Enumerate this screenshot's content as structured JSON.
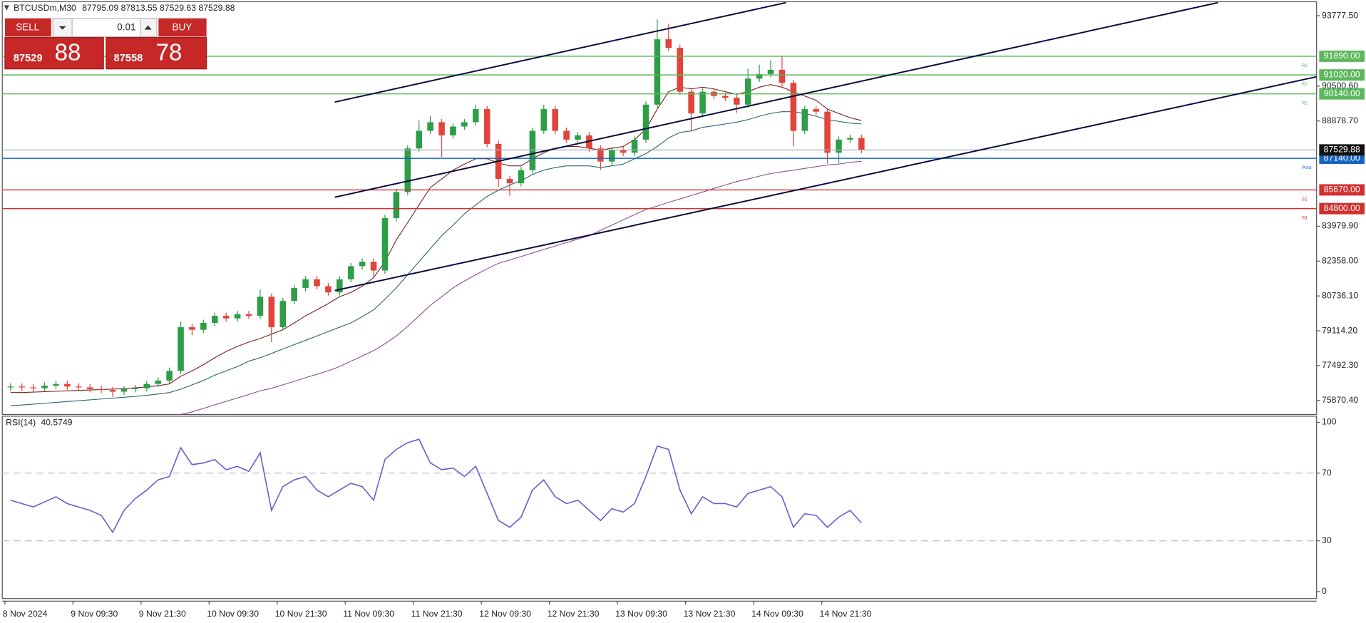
{
  "header": {
    "symbol": "BTCUSDm,M30",
    "quote": "87795.09 87813.55 87529.63 87529.88"
  },
  "trade_panel": {
    "sell": "SELL",
    "buy": "BUY",
    "volume": "0.01",
    "sell_price_main": "87529",
    "sell_price_big": "88",
    "buy_price_main": "87558",
    "buy_price_big": "78"
  },
  "chart_data": [
    {
      "type": "candlestick",
      "categories": [
        "8 Nov 2024",
        null,
        null,
        null,
        null,
        null,
        "9 Nov 09:30",
        null,
        null,
        null,
        null,
        null,
        "9 Nov 21:30",
        null,
        null,
        null,
        null,
        null,
        "10 Nov 09:30",
        null,
        null,
        null,
        null,
        null,
        "10 Nov 21:30",
        null,
        null,
        null,
        null,
        null,
        "11 Nov 09:30",
        null,
        null,
        null,
        null,
        null,
        "11 Nov 21:30",
        null,
        null,
        null,
        null,
        null,
        "12 Nov 09:30",
        null,
        null,
        null,
        null,
        null,
        "12 Nov 21:30",
        null,
        null,
        null,
        null,
        null,
        "13 Nov 09:30",
        null,
        null,
        null,
        null,
        null,
        "13 Nov 21:30",
        null,
        null,
        null,
        null,
        null,
        "14 Nov 09:30",
        null,
        null,
        null,
        null,
        null,
        "14 Nov 21:30",
        null,
        null,
        null
      ],
      "open": [
        76480,
        76520,
        76480,
        76440,
        76560,
        76640,
        76520,
        76480,
        76400,
        76360,
        76280,
        76400,
        76440,
        76640,
        76800,
        77250,
        79280,
        79160,
        79480,
        79810,
        79690,
        79890,
        79810,
        80700,
        79280,
        80500,
        81110,
        81510,
        81190,
        80900,
        81510,
        82120,
        82330,
        81920,
        84360,
        85570,
        87600,
        88420,
        88820,
        88210,
        88620,
        88820,
        89430,
        87810,
        86180,
        85980,
        86590,
        88420,
        89430,
        88420,
        88010,
        88210,
        87600,
        86990,
        87520,
        87400,
        88010,
        89640,
        92680,
        92280,
        90240,
        89230,
        90240,
        90040,
        89960,
        89640,
        90850,
        91060,
        91260,
        90650,
        88420,
        89430,
        89310,
        87400,
        88010,
        88090
      ],
      "high": [
        76670,
        76670,
        76630,
        76710,
        76790,
        76790,
        76670,
        76630,
        76550,
        76510,
        76550,
        76590,
        76790,
        76950,
        77400,
        79560,
        79430,
        79630,
        79960,
        79960,
        80040,
        80040,
        81030,
        80850,
        80650,
        81260,
        81660,
        81660,
        81340,
        81660,
        82270,
        82480,
        82480,
        84510,
        85720,
        87750,
        88900,
        89100,
        88970,
        88770,
        88970,
        89630,
        89580,
        87960,
        86330,
        86740,
        88570,
        89630,
        89580,
        88570,
        88360,
        88360,
        87750,
        87670,
        87670,
        88160,
        89790,
        93600,
        93400,
        92430,
        90390,
        90390,
        90390,
        90190,
        90110,
        91300,
        91500,
        91700,
        91900,
        90800,
        89580,
        89580,
        89460,
        88160,
        88240,
        88240
      ],
      "low": [
        76330,
        76330,
        76290,
        76290,
        76410,
        76370,
        76330,
        76250,
        76210,
        76030,
        76130,
        76250,
        76290,
        76490,
        76650,
        77100,
        78900,
        79010,
        79330,
        79540,
        79540,
        79660,
        79660,
        78590,
        79130,
        80350,
        80960,
        81040,
        80750,
        80750,
        81360,
        81970,
        81650,
        81770,
        84210,
        85420,
        87450,
        88270,
        87200,
        88060,
        88470,
        88670,
        87660,
        85800,
        85400,
        85830,
        86440,
        88270,
        88270,
        87860,
        87860,
        87450,
        86600,
        86840,
        87250,
        87250,
        87860,
        89490,
        92130,
        90090,
        88400,
        89080,
        89890,
        89810,
        89250,
        89490,
        90700,
        90910,
        90500,
        87700,
        88270,
        89160,
        86900,
        86900,
        87860,
        87380
      ],
      "close": [
        76520,
        76480,
        76440,
        76560,
        76640,
        76520,
        76480,
        76400,
        76360,
        76280,
        76400,
        76440,
        76640,
        76800,
        77250,
        79280,
        79160,
        79480,
        79810,
        79690,
        79890,
        79810,
        80700,
        79280,
        80500,
        81110,
        81510,
        81190,
        80900,
        81510,
        82120,
        82330,
        81920,
        84360,
        85570,
        87600,
        88420,
        88820,
        88210,
        88620,
        88820,
        89430,
        87810,
        86180,
        85980,
        86590,
        88420,
        89430,
        88420,
        88010,
        88210,
        87600,
        86990,
        87520,
        87400,
        88010,
        89640,
        92680,
        92280,
        90240,
        89230,
        90240,
        90040,
        89960,
        89640,
        90850,
        91060,
        91260,
        90650,
        88420,
        89430,
        89310,
        87400,
        88010,
        88090,
        87529.88
      ],
      "up_color": "#2e9d48",
      "down_color": "#e0443a",
      "series": [
        {
          "color": "#7a1f1f",
          "values": [
            76240,
            76240,
            76260,
            76280,
            76300,
            76320,
            76340,
            76360,
            76380,
            76400,
            76420,
            76460,
            76500,
            76560,
            76640,
            77000,
            77250,
            77540,
            77860,
            78150,
            78390,
            78590,
            78750,
            78960,
            79160,
            79480,
            79810,
            80090,
            80380,
            80700,
            80900,
            81190,
            81590,
            82330,
            83340,
            84150,
            84970,
            85780,
            86180,
            86590,
            86870,
            87120,
            87120,
            86920,
            86790,
            86790,
            87120,
            87400,
            87610,
            87690,
            87690,
            87610,
            87520,
            87610,
            87690,
            88010,
            88500,
            89430,
            90240,
            90450,
            90370,
            90450,
            90370,
            90240,
            90120,
            90240,
            90450,
            90570,
            90450,
            90240,
            90040,
            89840,
            89430,
            89230,
            89030,
            88900
          ]
        },
        {
          "color": "#2a6470",
          "values": [
            75630,
            75660,
            75700,
            75740,
            75780,
            75820,
            75860,
            75900,
            75940,
            75980,
            76020,
            76060,
            76110,
            76170,
            76240,
            76400,
            76600,
            76800,
            77050,
            77250,
            77450,
            77700,
            77860,
            78060,
            78270,
            78470,
            78670,
            78870,
            79080,
            79280,
            79480,
            79770,
            80090,
            80580,
            81110,
            81720,
            82330,
            82940,
            83540,
            84030,
            84560,
            84970,
            85370,
            85660,
            85900,
            86100,
            86390,
            86590,
            86710,
            86790,
            86790,
            86790,
            86710,
            86790,
            86870,
            87120,
            87360,
            87690,
            88090,
            88340,
            88420,
            88580,
            88660,
            88740,
            88820,
            88940,
            89100,
            89230,
            89310,
            89310,
            89230,
            89100,
            88940,
            88860,
            88780,
            88740
          ]
        },
        {
          "color": "#8e4f8e",
          "values": [
            null,
            null,
            null,
            null,
            null,
            null,
            null,
            null,
            null,
            null,
            null,
            null,
            null,
            null,
            null,
            75220,
            75340,
            75500,
            75670,
            75830,
            75990,
            76150,
            76320,
            76440,
            76600,
            76760,
            76930,
            77090,
            77250,
            77450,
            77700,
            77940,
            78190,
            78510,
            78870,
            79320,
            79810,
            80300,
            80700,
            81110,
            81430,
            81720,
            82000,
            82250,
            82410,
            82570,
            82730,
            82900,
            83060,
            83220,
            83380,
            83540,
            83790,
            84030,
            84280,
            84520,
            84760,
            84920,
            85090,
            85250,
            85410,
            85570,
            85740,
            85900,
            86060,
            86180,
            86310,
            86430,
            86510,
            86590,
            86670,
            86750,
            86830,
            86870,
            86950,
            87000
          ]
        }
      ],
      "levels": [
        {
          "value": 91890,
          "label": "91890.00",
          "tag": "R3",
          "color": "#5cb85c"
        },
        {
          "value": 91020,
          "label": "91020.00",
          "tag": "R2",
          "color": "#5cb85c"
        },
        {
          "value": 90140,
          "label": "90140.00",
          "tag": "R1",
          "color": "#5cb85c"
        },
        {
          "value": 87140,
          "label": "87140.00",
          "tag": "Pivot",
          "color": "#1565c0"
        },
        {
          "value": 85670,
          "label": "85670.00",
          "tag": "S2",
          "color": "#d32f2f"
        },
        {
          "value": 84800,
          "label": "84800.00",
          "tag": "S3",
          "color": "#d32f2f"
        }
      ],
      "last": {
        "value": 87529.88,
        "label": "87529.88",
        "color": "#9fb2c0"
      },
      "ylim": [
        75220,
        94508
      ],
      "yticks": [
        {
          "value": 93777.5,
          "label": "93777.50"
        },
        {
          "value": 90500.6,
          "label": "90500.60"
        },
        {
          "value": 88878.7,
          "label": "88878.70"
        },
        {
          "value": 83979.9,
          "label": "83979.90"
        },
        {
          "value": 82358,
          "label": "82358.00"
        },
        {
          "value": 80736.1,
          "label": "80736.10"
        },
        {
          "value": 79114.2,
          "label": "79114.20"
        },
        {
          "value": 77492.3,
          "label": "77492.30"
        },
        {
          "value": 75870.4,
          "label": "75870.40"
        }
      ]
    },
    {
      "type": "line",
      "title": "RSI(14)",
      "color": "#6a5acd",
      "values": [
        54,
        52,
        50,
        53,
        56,
        52,
        50,
        48,
        45,
        35,
        48,
        55,
        60,
        66,
        68,
        85,
        75,
        76,
        78,
        72,
        74,
        71,
        82,
        48,
        62,
        66,
        68,
        60,
        56,
        60,
        64,
        62,
        54,
        78,
        84,
        88,
        90,
        76,
        72,
        73,
        68,
        74,
        58,
        42,
        38,
        44,
        60,
        66,
        56,
        52,
        54,
        48,
        42,
        49,
        47,
        52,
        68,
        86,
        84,
        60,
        46,
        56,
        52,
        52,
        50,
        58,
        60,
        62,
        56,
        38,
        46,
        45,
        38,
        44,
        48,
        40.5749
      ],
      "ylim": [
        -3.6,
        103.1
      ],
      "yticks": [
        100,
        70,
        30,
        0
      ],
      "levels": [
        70,
        30
      ]
    }
  ]
}
